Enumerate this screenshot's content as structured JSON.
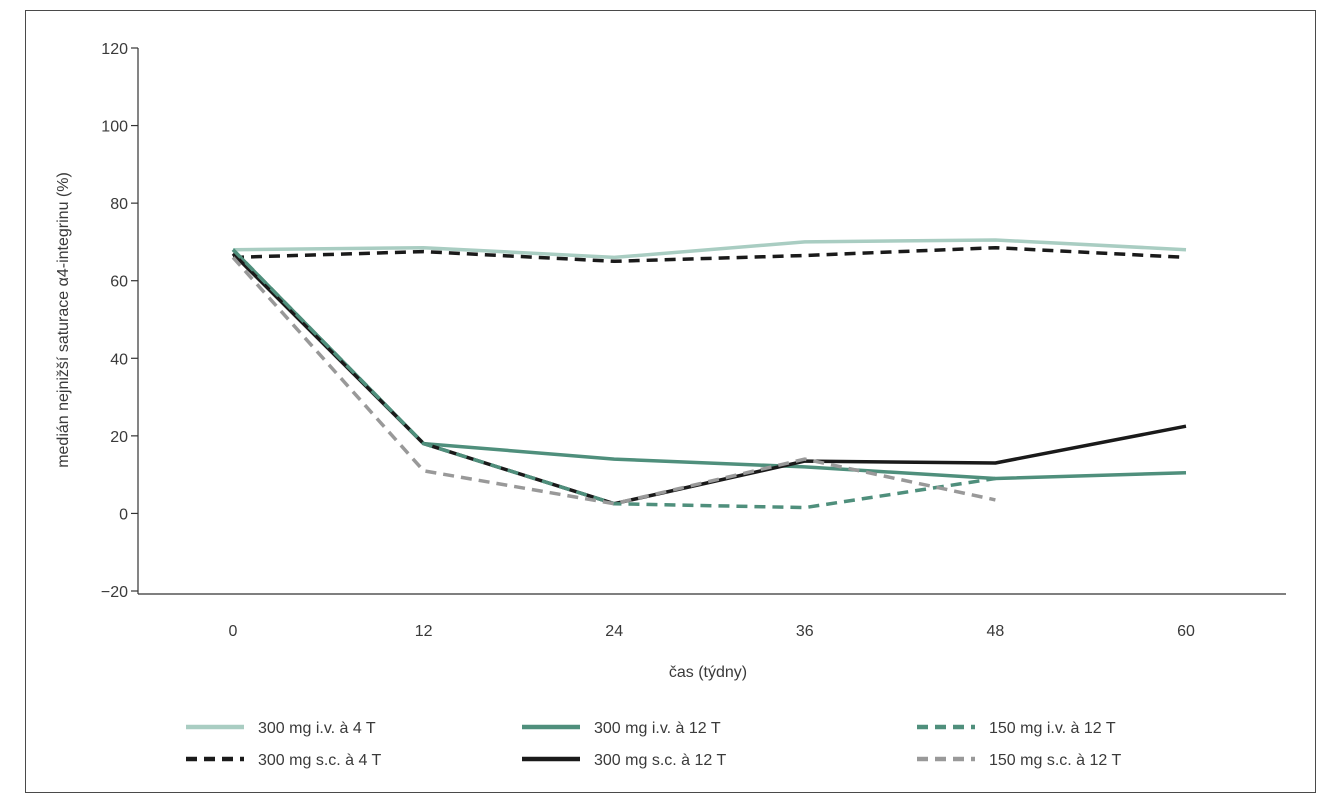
{
  "chart_data": {
    "type": "line",
    "title": "",
    "xlabel": "čas (týdny)",
    "ylabel": "medián nejnižší saturace α4-integrinu (%)",
    "x_ticks": [
      "0",
      "12",
      "24",
      "36",
      "48",
      "60"
    ],
    "y_ticks": [
      "120",
      "100",
      "80",
      "60",
      "40",
      "20",
      "0",
      "−20"
    ],
    "xlim": [
      0,
      60
    ],
    "ylim": [
      -20,
      120
    ],
    "grid": false,
    "legend_position": "bottom",
    "series": [
      {
        "name": "300 mg i.v. à 4 T",
        "color": "#a9cdc2",
        "dash": "solid",
        "x": [
          0,
          12,
          24,
          36,
          48,
          60
        ],
        "y": [
          68,
          68.5,
          66,
          70,
          70.5,
          68
        ]
      },
      {
        "name": "300 mg i.v. à 12 T",
        "color": "#4f8f7c",
        "dash": "solid",
        "x": [
          0,
          12,
          24,
          36,
          48,
          60
        ],
        "y": [
          68,
          18,
          14,
          12,
          9,
          10.5
        ]
      },
      {
        "name": "150 mg i.v. à 12 T",
        "color": "#4f8f7c",
        "dash": "dashed",
        "x": [
          0,
          12,
          24,
          36,
          48
        ],
        "y": [
          68,
          18,
          2.5,
          1.5,
          9
        ]
      },
      {
        "name": "300 mg s.c. à 4 T",
        "color": "#1a1a1a",
        "dash": "dashed",
        "x": [
          0,
          12,
          24,
          36,
          48,
          60
        ],
        "y": [
          66,
          67.5,
          65,
          66.5,
          68.5,
          66
        ]
      },
      {
        "name": "300 mg s.c. à 12 T",
        "color": "#1a1a1a",
        "dash": "solid",
        "x": [
          0,
          12,
          24,
          36,
          48,
          60
        ],
        "y": [
          67,
          18,
          2.5,
          13.5,
          13,
          22.5
        ]
      },
      {
        "name": "150 mg s.c. à 12 T",
        "color": "#999999",
        "dash": "dashed",
        "x": [
          0,
          12,
          24,
          36,
          48
        ],
        "y": [
          66,
          11,
          2.5,
          14,
          3.5
        ]
      }
    ]
  }
}
